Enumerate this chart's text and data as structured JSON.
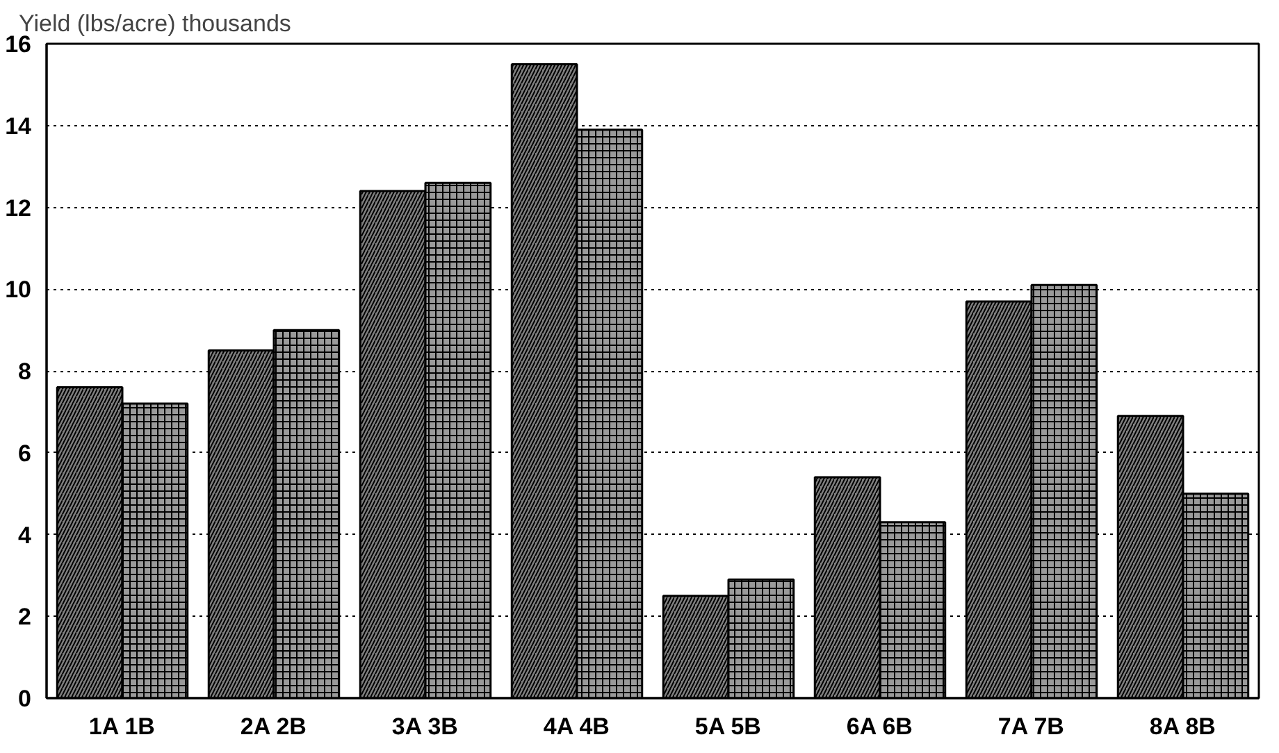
{
  "chart_data": {
    "type": "bar",
    "ylabel": "Yield (lbs/acre) thousands",
    "categories": [
      "1A 1B",
      "2A 2B",
      "3A 3B",
      "4A 4B",
      "5A 5B",
      "6A 6B",
      "7A 7B",
      "8A 8B"
    ],
    "series": [
      {
        "color": "#7f7f7f",
        "values": [
          7.6,
          8.5,
          12.4,
          15.5,
          2.5,
          5.4,
          9.7,
          6.9
        ]
      },
      {
        "color": "#9a9a9a",
        "values": [
          7.2,
          9.0,
          12.6,
          13.9,
          2.9,
          4.3,
          10.1,
          5.0
        ]
      }
    ],
    "ylim": [
      0,
      16
    ],
    "yticks": [
      0,
      2,
      4,
      6,
      8,
      10,
      12,
      14,
      16
    ],
    "grid": "y"
  }
}
